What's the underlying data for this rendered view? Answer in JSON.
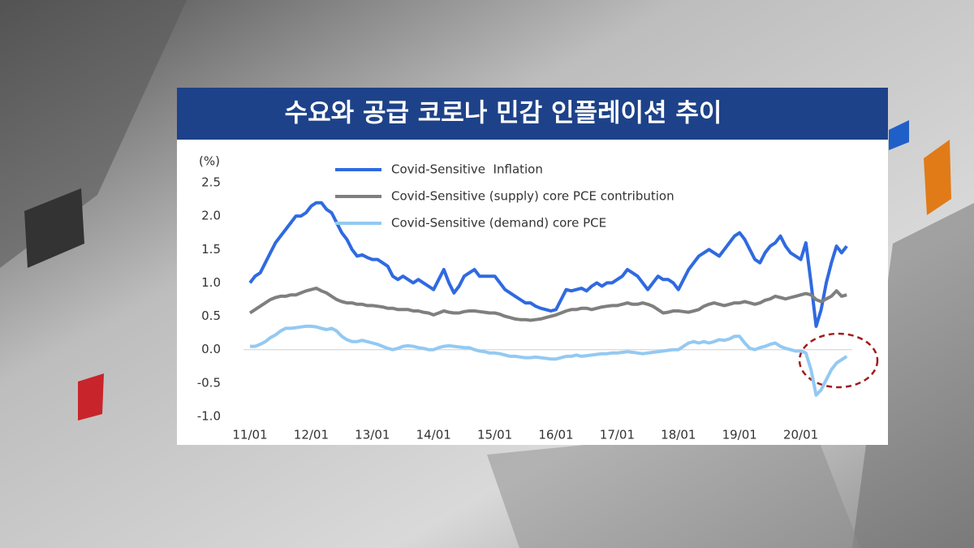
{
  "chart_data": {
    "type": "line",
    "title": "수요와 공급 코로나 민감 인플레이션 추이",
    "y_label": "(%)",
    "categories": [
      "11/01",
      null,
      null,
      null,
      null,
      null,
      null,
      null,
      null,
      null,
      null,
      null,
      "12/01",
      null,
      null,
      null,
      null,
      null,
      null,
      null,
      null,
      null,
      null,
      null,
      "13/01",
      null,
      null,
      null,
      null,
      null,
      null,
      null,
      null,
      null,
      null,
      null,
      "14/01",
      null,
      null,
      null,
      null,
      null,
      null,
      null,
      null,
      null,
      null,
      null,
      "15/01",
      null,
      null,
      null,
      null,
      null,
      null,
      null,
      null,
      null,
      null,
      null,
      "16/01",
      null,
      null,
      null,
      null,
      null,
      null,
      null,
      null,
      null,
      null,
      null,
      "17/01",
      null,
      null,
      null,
      null,
      null,
      null,
      null,
      null,
      null,
      null,
      null,
      "18/01",
      null,
      null,
      null,
      null,
      null,
      null,
      null,
      null,
      null,
      null,
      null,
      "19/01",
      null,
      null,
      null,
      null,
      null,
      null,
      null,
      null,
      null,
      null,
      null,
      "20/01",
      null,
      null,
      null,
      null,
      null,
      null,
      null,
      null,
      null
    ],
    "series": [
      {
        "name": "Covid-Sensitive  Inflation",
        "color": "#2f6ae0",
        "values": [
          1.0,
          1.1,
          1.15,
          1.3,
          1.45,
          1.6,
          1.7,
          1.8,
          1.9,
          2.0,
          2.0,
          2.05,
          2.15,
          2.2,
          2.2,
          2.1,
          2.05,
          1.9,
          1.75,
          1.65,
          1.5,
          1.4,
          1.42,
          1.38,
          1.35,
          1.35,
          1.3,
          1.25,
          1.1,
          1.05,
          1.1,
          1.05,
          1.0,
          1.05,
          1.0,
          0.95,
          0.9,
          1.05,
          1.2,
          1.0,
          0.85,
          0.95,
          1.1,
          1.15,
          1.2,
          1.1,
          1.1,
          1.1,
          1.1,
          1.0,
          0.9,
          0.85,
          0.8,
          0.75,
          0.7,
          0.7,
          0.65,
          0.62,
          0.6,
          0.58,
          0.6,
          0.75,
          0.9,
          0.88,
          0.9,
          0.92,
          0.88,
          0.95,
          1.0,
          0.95,
          1.0,
          1.0,
          1.05,
          1.1,
          1.2,
          1.15,
          1.1,
          1.0,
          0.9,
          1.0,
          1.1,
          1.05,
          1.05,
          1.0,
          0.9,
          1.05,
          1.2,
          1.3,
          1.4,
          1.45,
          1.5,
          1.45,
          1.4,
          1.5,
          1.6,
          1.7,
          1.75,
          1.65,
          1.5,
          1.35,
          1.3,
          1.45,
          1.55,
          1.6,
          1.7,
          1.55,
          1.45,
          1.4,
          1.35,
          1.6,
          1.0,
          0.35,
          0.6,
          1.0,
          1.3,
          1.55,
          1.45,
          1.55
        ]
      },
      {
        "name": "Covid-Sensitive (supply) core PCE contribution",
        "color": "#7f7f7f",
        "values": [
          0.55,
          0.6,
          0.65,
          0.7,
          0.75,
          0.78,
          0.8,
          0.8,
          0.82,
          0.82,
          0.85,
          0.88,
          0.9,
          0.92,
          0.88,
          0.85,
          0.8,
          0.75,
          0.72,
          0.7,
          0.7,
          0.68,
          0.68,
          0.66,
          0.66,
          0.65,
          0.64,
          0.62,
          0.62,
          0.6,
          0.6,
          0.6,
          0.58,
          0.58,
          0.56,
          0.55,
          0.52,
          0.55,
          0.58,
          0.56,
          0.55,
          0.55,
          0.57,
          0.58,
          0.58,
          0.57,
          0.56,
          0.55,
          0.55,
          0.53,
          0.5,
          0.48,
          0.46,
          0.45,
          0.45,
          0.44,
          0.45,
          0.46,
          0.48,
          0.5,
          0.52,
          0.55,
          0.58,
          0.6,
          0.6,
          0.62,
          0.62,
          0.6,
          0.62,
          0.64,
          0.65,
          0.66,
          0.66,
          0.68,
          0.7,
          0.68,
          0.68,
          0.7,
          0.68,
          0.65,
          0.6,
          0.55,
          0.56,
          0.58,
          0.58,
          0.57,
          0.56,
          0.58,
          0.6,
          0.65,
          0.68,
          0.7,
          0.68,
          0.66,
          0.68,
          0.7,
          0.7,
          0.72,
          0.7,
          0.68,
          0.7,
          0.74,
          0.76,
          0.8,
          0.78,
          0.76,
          0.78,
          0.8,
          0.82,
          0.84,
          0.82,
          0.75,
          0.72,
          0.76,
          0.8,
          0.88,
          0.8,
          0.82
        ]
      },
      {
        "name": "Covid-Sensitive (demand) core PCE",
        "color": "#93c9f2",
        "values": [
          0.05,
          0.05,
          0.08,
          0.12,
          0.18,
          0.22,
          0.28,
          0.32,
          0.32,
          0.33,
          0.34,
          0.35,
          0.35,
          0.34,
          0.32,
          0.3,
          0.32,
          0.28,
          0.2,
          0.15,
          0.12,
          0.12,
          0.14,
          0.12,
          0.1,
          0.08,
          0.05,
          0.02,
          0.0,
          0.02,
          0.05,
          0.06,
          0.05,
          0.03,
          0.02,
          0.0,
          0.0,
          0.03,
          0.05,
          0.06,
          0.05,
          0.04,
          0.03,
          0.03,
          0.0,
          -0.02,
          -0.03,
          -0.05,
          -0.05,
          -0.06,
          -0.08,
          -0.1,
          -0.1,
          -0.11,
          -0.12,
          -0.12,
          -0.11,
          -0.12,
          -0.13,
          -0.14,
          -0.14,
          -0.12,
          -0.1,
          -0.1,
          -0.08,
          -0.1,
          -0.09,
          -0.08,
          -0.07,
          -0.06,
          -0.06,
          -0.05,
          -0.05,
          -0.04,
          -0.03,
          -0.04,
          -0.05,
          -0.06,
          -0.05,
          -0.04,
          -0.03,
          -0.02,
          -0.01,
          0.0,
          0.0,
          0.05,
          0.1,
          0.12,
          0.1,
          0.12,
          0.1,
          0.12,
          0.15,
          0.14,
          0.16,
          0.2,
          0.2,
          0.1,
          0.02,
          0.0,
          0.03,
          0.05,
          0.08,
          0.1,
          0.05,
          0.02,
          0.0,
          -0.02,
          -0.02,
          -0.05,
          -0.3,
          -0.68,
          -0.6,
          -0.45,
          -0.3,
          -0.2,
          -0.15,
          -0.1
        ]
      }
    ],
    "ylim": [
      -1.0,
      2.5
    ],
    "yticks": [
      2.5,
      {
        "value": 2,
        "label": "2.0"
      },
      1.5,
      {
        "value": 1,
        "label": "1.0"
      },
      0.5,
      {
        "value": 0,
        "label": "0.0"
      },
      -0.5,
      {
        "value": -1,
        "label": "-1.0"
      }
    ],
    "grid": false
  }
}
